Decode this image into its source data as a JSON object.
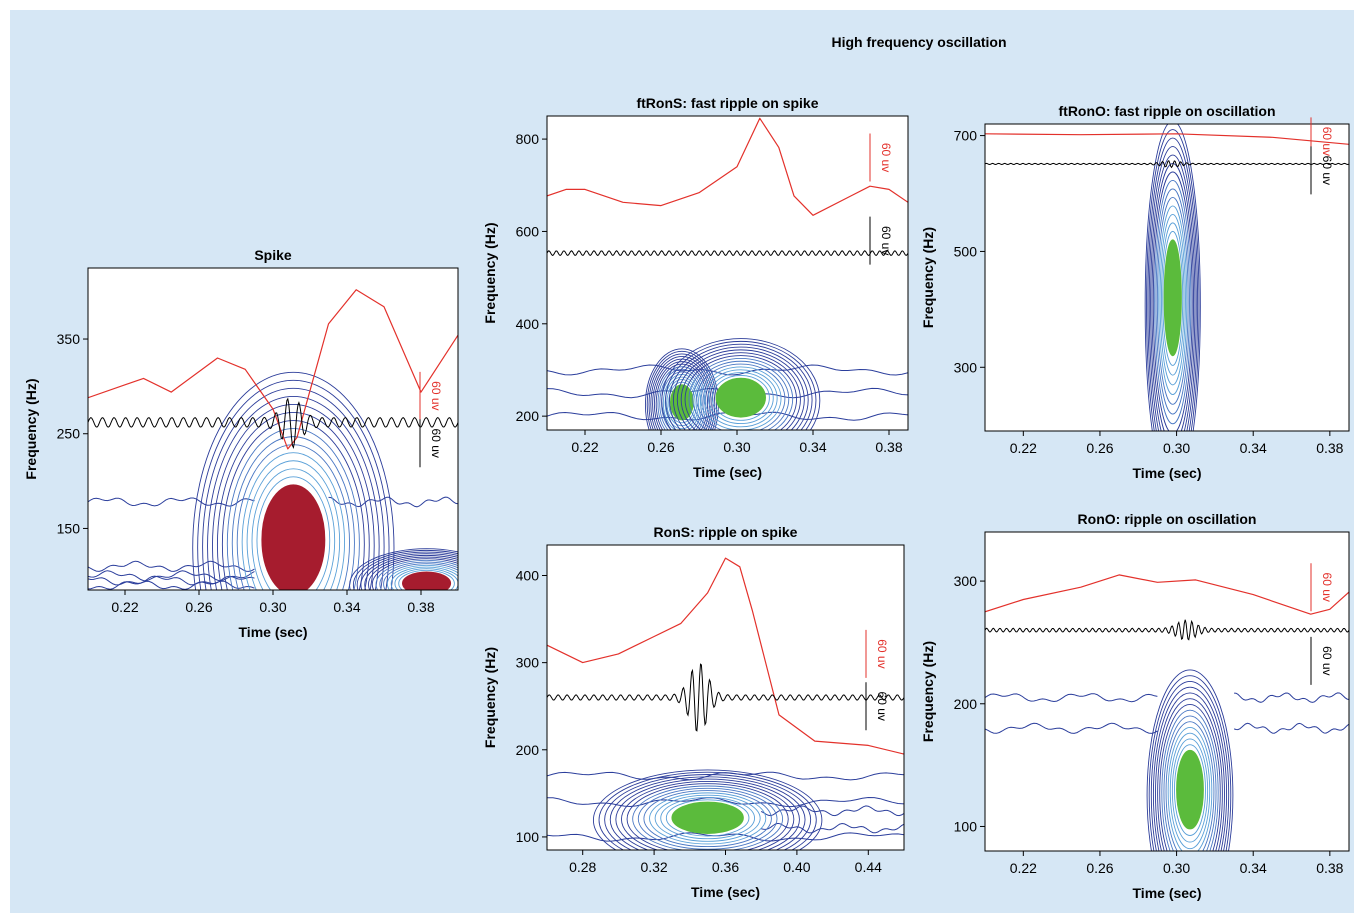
{
  "figure_heading": "High frequency oscillation",
  "chart_data": [
    {
      "id": "spike",
      "type": "contour",
      "title": "Spike",
      "xlabel": "Time (sec)",
      "ylabel": "Frequency (Hz)",
      "xlim": [
        0.2,
        0.4
      ],
      "ylim": [
        85,
        425
      ],
      "xticks": [
        0.22,
        0.26,
        0.3,
        0.34,
        0.38
      ],
      "xtick_labels": [
        "0.22",
        "0.26",
        "0.30",
        "0.34",
        "0.38"
      ],
      "yticks": [
        150,
        250,
        350
      ],
      "ytick_labels": [
        "150",
        "250",
        "350"
      ],
      "blobs": [
        {
          "t": 0.311,
          "f": 138,
          "st": 0.017,
          "sf": 58,
          "color": "#a61c2e"
        },
        {
          "t": 0.383,
          "f": 92,
          "st": 0.013,
          "sf": 12,
          "color": "#a61c2e"
        }
      ],
      "contour_lines": [
        {
          "f": 178,
          "t_start": 0.2,
          "t_end": 0.29
        },
        {
          "f": 178,
          "t_start": 0.33,
          "t_end": 0.4
        },
        {
          "f": 110,
          "t_start": 0.2,
          "t_end": 0.29
        },
        {
          "f": 100,
          "t_start": 0.2,
          "t_end": 0.29
        },
        {
          "f": 95,
          "t_start": 0.2,
          "t_end": 0.29
        },
        {
          "f": 90,
          "t_start": 0.2,
          "t_end": 0.29
        }
      ],
      "red_trace": {
        "base": 300,
        "amp": 120,
        "points": [
          [
            0.2,
            -0.1
          ],
          [
            0.23,
            0.07
          ],
          [
            0.245,
            -0.05
          ],
          [
            0.27,
            0.25
          ],
          [
            0.285,
            0.15
          ],
          [
            0.3,
            -0.2
          ],
          [
            0.308,
            -0.55
          ],
          [
            0.313,
            -0.45
          ],
          [
            0.33,
            0.55
          ],
          [
            0.345,
            0.85
          ],
          [
            0.36,
            0.7
          ],
          [
            0.38,
            -0.05
          ],
          [
            0.4,
            0.45
          ]
        ]
      },
      "black_trace": {
        "base": 262,
        "amp": 5,
        "cycles": 32,
        "burst": {
          "t": 0.31,
          "amp": 22
        }
      },
      "scalebars": [
        {
          "label": "60 uv",
          "color": "#e3312b",
          "f": 290
        },
        {
          "label": "60 uv",
          "color": "#000000",
          "f": 240
        }
      ]
    },
    {
      "id": "ftrons",
      "type": "contour",
      "title": "ftRonS: fast ripple on spike",
      "xlabel": "Time (sec)",
      "ylabel": "Frequency (Hz)",
      "xlim": [
        0.2,
        0.39
      ],
      "ylim": [
        170,
        850
      ],
      "xticks": [
        0.22,
        0.26,
        0.3,
        0.34,
        0.38
      ],
      "xtick_labels": [
        "0.22",
        "0.26",
        "0.30",
        "0.34",
        "0.38"
      ],
      "yticks": [
        200,
        400,
        600,
        800
      ],
      "ytick_labels": [
        "200",
        "400",
        "600",
        "800"
      ],
      "blobs": [
        {
          "t": 0.271,
          "f": 230,
          "st": 0.006,
          "sf": 38,
          "color": "#5bbb3c"
        },
        {
          "t": 0.302,
          "f": 240,
          "st": 0.013,
          "sf": 42,
          "color": "#5bbb3c"
        }
      ],
      "contour_lines": [
        {
          "f": 200,
          "t_start": 0.2,
          "t_end": 0.39
        },
        {
          "f": 250,
          "t_start": 0.2,
          "t_end": 0.39
        },
        {
          "f": 300,
          "t_start": 0.2,
          "t_end": 0.39
        }
      ],
      "red_trace": {
        "base": 670,
        "amp": 140,
        "points": [
          [
            0.2,
            0.05
          ],
          [
            0.21,
            0.15
          ],
          [
            0.22,
            0.15
          ],
          [
            0.24,
            -0.05
          ],
          [
            0.26,
            -0.1
          ],
          [
            0.28,
            0.1
          ],
          [
            0.29,
            0.3
          ],
          [
            0.3,
            0.5
          ],
          [
            0.312,
            1.25
          ],
          [
            0.322,
            0.8
          ],
          [
            0.33,
            0.05
          ],
          [
            0.34,
            -0.25
          ],
          [
            0.36,
            0.05
          ],
          [
            0.37,
            0.2
          ],
          [
            0.38,
            0.15
          ],
          [
            0.39,
            -0.05
          ]
        ]
      },
      "black_trace": {
        "base": 553,
        "amp": 5,
        "cycles": 48,
        "burst": null
      },
      "scalebars": [
        {
          "label": "60 uv",
          "color": "#e3312b",
          "f": 760
        },
        {
          "label": "60 uv",
          "color": "#000000",
          "f": 580
        }
      ]
    },
    {
      "id": "ftrono",
      "type": "contour",
      "title": "ftRonO: fast ripple on oscillation",
      "xlabel": "Time (sec)",
      "ylabel": "Frequency (Hz)",
      "xlim": [
        0.2,
        0.39
      ],
      "ylim": [
        190,
        720
      ],
      "xticks": [
        0.22,
        0.26,
        0.3,
        0.34,
        0.38
      ],
      "xtick_labels": [
        "0.22",
        "0.26",
        "0.30",
        "0.34",
        "0.38"
      ],
      "yticks": [
        300,
        500,
        700
      ],
      "ytick_labels": [
        "300",
        "500",
        "700"
      ],
      "blobs": [
        {
          "t": 0.298,
          "f": 420,
          "st": 0.0045,
          "sf": 100,
          "color": "#5bbb3c"
        }
      ],
      "contour_lines": [],
      "red_trace": {
        "base": 700,
        "amp": 30,
        "points": [
          [
            0.2,
            0.1
          ],
          [
            0.25,
            0.05
          ],
          [
            0.3,
            0.1
          ],
          [
            0.35,
            -0.1
          ],
          [
            0.39,
            -0.5
          ]
        ]
      },
      "black_trace": {
        "base": 651,
        "amp": 1,
        "cycles": 60,
        "burst": {
          "t": 0.297,
          "amp": 5
        }
      },
      "scalebars": [
        {
          "label": "60 uv",
          "color": "#e3312b",
          "f": 690
        },
        {
          "label": "60 uv",
          "color": "#000000",
          "f": 640
        }
      ]
    },
    {
      "id": "rons",
      "type": "contour",
      "title": "RonS: ripple on spike",
      "xlabel": "Time (sec)",
      "ylabel": "Frequency (Hz)",
      "xlim": [
        0.26,
        0.46
      ],
      "ylim": [
        85,
        435
      ],
      "xticks": [
        0.28,
        0.32,
        0.36,
        0.4,
        0.44
      ],
      "xtick_labels": [
        "0.28",
        "0.32",
        "0.36",
        "0.40",
        "0.44"
      ],
      "yticks": [
        100,
        200,
        300,
        400
      ],
      "ytick_labels": [
        "100",
        "200",
        "300",
        "400"
      ],
      "blobs": [
        {
          "t": 0.35,
          "f": 122,
          "st": 0.02,
          "sf": 18,
          "color": "#5bbb3c"
        }
      ],
      "contour_lines": [
        {
          "f": 170,
          "t_start": 0.26,
          "t_end": 0.46
        },
        {
          "f": 140,
          "t_start": 0.26,
          "t_end": 0.46
        },
        {
          "f": 130,
          "t_start": 0.38,
          "t_end": 0.46
        },
        {
          "f": 110,
          "t_start": 0.38,
          "t_end": 0.46
        },
        {
          "f": 100,
          "t_start": 0.26,
          "t_end": 0.46
        }
      ],
      "red_trace": {
        "base": 300,
        "amp": 100,
        "points": [
          [
            0.26,
            0.2
          ],
          [
            0.28,
            0.0
          ],
          [
            0.3,
            0.1
          ],
          [
            0.32,
            0.3
          ],
          [
            0.335,
            0.45
          ],
          [
            0.35,
            0.8
          ],
          [
            0.36,
            1.2
          ],
          [
            0.368,
            1.1
          ],
          [
            0.375,
            0.6
          ],
          [
            0.39,
            -0.6
          ],
          [
            0.41,
            -0.9
          ],
          [
            0.44,
            -0.95
          ],
          [
            0.46,
            -1.05
          ]
        ]
      },
      "black_trace": {
        "base": 260,
        "amp": 3,
        "cycles": 40,
        "burst": {
          "t": 0.345,
          "amp": 38
        }
      },
      "scalebars": [
        {
          "label": "60 uv",
          "color": "#e3312b",
          "f": 310
        },
        {
          "label": "60 uv",
          "color": "#000000",
          "f": 250
        }
      ]
    },
    {
      "id": "rono",
      "type": "contour",
      "title": "RonO: ripple on oscillation",
      "xlabel": "Time (sec)",
      "ylabel": "Frequency (Hz)",
      "xlim": [
        0.2,
        0.39
      ],
      "ylim": [
        80,
        340
      ],
      "xticks": [
        0.22,
        0.26,
        0.3,
        0.34,
        0.38
      ],
      "xtick_labels": [
        "0.22",
        "0.26",
        "0.30",
        "0.34",
        "0.38"
      ],
      "yticks": [
        100,
        200,
        300
      ],
      "ytick_labels": [
        "100",
        "200",
        "300"
      ],
      "blobs": [
        {
          "t": 0.307,
          "f": 130,
          "st": 0.007,
          "sf": 32,
          "color": "#5bbb3c"
        }
      ],
      "contour_lines": [
        {
          "f": 205,
          "t_start": 0.2,
          "t_end": 0.29
        },
        {
          "f": 205,
          "t_start": 0.33,
          "t_end": 0.39
        },
        {
          "f": 180,
          "t_start": 0.2,
          "t_end": 0.29
        },
        {
          "f": 180,
          "t_start": 0.33,
          "t_end": 0.39
        }
      ],
      "red_trace": {
        "base": 285,
        "amp": 20,
        "points": [
          [
            0.2,
            -0.5
          ],
          [
            0.22,
            0.0
          ],
          [
            0.25,
            0.5
          ],
          [
            0.27,
            1.0
          ],
          [
            0.29,
            0.7
          ],
          [
            0.31,
            0.8
          ],
          [
            0.34,
            0.2
          ],
          [
            0.37,
            -0.6
          ],
          [
            0.38,
            -0.4
          ],
          [
            0.39,
            0.3
          ]
        ]
      },
      "black_trace": {
        "base": 260,
        "amp": 1.5,
        "cycles": 55,
        "burst": {
          "t": 0.305,
          "amp": 7
        }
      },
      "scalebars": [
        {
          "label": "60 uv",
          "color": "#e3312b",
          "f": 295
        },
        {
          "label": "60 uv",
          "color": "#000000",
          "f": 235
        }
      ]
    }
  ]
}
